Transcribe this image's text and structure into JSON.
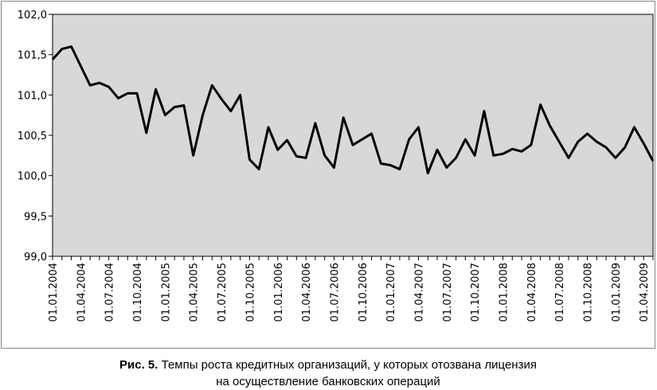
{
  "chart_data": {
    "type": "line",
    "caption_label": "Рис. 5.",
    "caption": [
      "Темпы роста кредитных организаций, у которых отозвана лицензия",
      "на осуществление банковских операций"
    ],
    "categories": [
      "01.01.2004",
      null,
      null,
      "01.04.2004",
      null,
      null,
      "01.07.2004",
      null,
      null,
      "01.10.2004",
      null,
      null,
      "01.01.2005",
      null,
      null,
      "01.04.2005",
      null,
      null,
      "01.07.2005",
      null,
      null,
      "01.10.2005",
      null,
      null,
      "01.01.2006",
      null,
      null,
      "01.04.2006",
      null,
      null,
      "01.07.2006",
      null,
      null,
      "01.10.2006",
      null,
      null,
      "01.01.2007",
      null,
      null,
      "01.04.2007",
      null,
      null,
      "01.07.2007",
      null,
      null,
      "01.10.2007",
      null,
      null,
      "01.01.2008",
      null,
      null,
      "01.04.2008",
      null,
      null,
      "01.07.2008",
      null,
      null,
      "01.10.2008",
      null,
      null,
      "01.01.2009",
      null,
      null,
      "01.04.2009",
      null
    ],
    "values": [
      101.44,
      101.57,
      101.6,
      101.36,
      101.12,
      101.15,
      101.1,
      100.96,
      101.02,
      101.02,
      100.53,
      101.07,
      100.75,
      100.85,
      100.87,
      100.25,
      100.75,
      101.12,
      100.95,
      100.8,
      101.0,
      100.2,
      100.08,
      100.6,
      100.32,
      100.44,
      100.24,
      100.22,
      100.65,
      100.25,
      100.1,
      100.72,
      100.38,
      100.45,
      100.52,
      100.15,
      100.13,
      100.08,
      100.45,
      100.6,
      100.03,
      100.32,
      100.1,
      100.22,
      100.45,
      100.25,
      100.8,
      100.25,
      100.27,
      100.33,
      100.3,
      100.38,
      100.88,
      100.62,
      100.42,
      100.22,
      100.42,
      100.52,
      100.42,
      100.35,
      100.22,
      100.35,
      100.6,
      100.4,
      100.18
    ],
    "color": "#000000",
    "ylim": [
      99,
      102
    ],
    "yticks": [
      {
        "value": 99,
        "label": "99,0"
      },
      {
        "value": 99.5,
        "label": "99,5"
      },
      {
        "value": 100,
        "label": "100,0"
      },
      {
        "value": 100.5,
        "label": "100,5"
      },
      {
        "value": 101,
        "label": "101,0"
      },
      {
        "value": 101.5,
        "label": "101,5"
      },
      {
        "value": 102,
        "label": "102,0"
      }
    ],
    "plot_background": "#d8d8d8"
  }
}
